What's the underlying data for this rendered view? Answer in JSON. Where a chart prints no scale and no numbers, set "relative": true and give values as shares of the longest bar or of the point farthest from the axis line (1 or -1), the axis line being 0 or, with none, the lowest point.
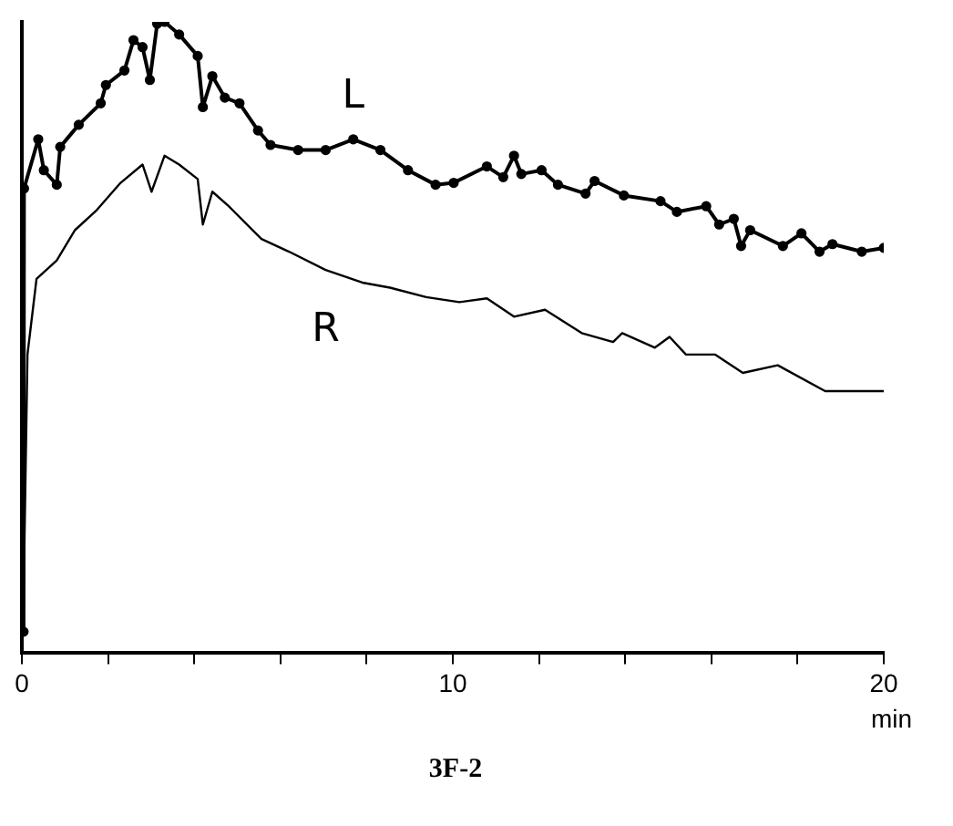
{
  "chart_data": {
    "type": "line",
    "relative": true,
    "xlabel": "min",
    "xlim": [
      0,
      20
    ],
    "xticks": [
      0,
      {
        "value": 2,
        "label": null
      },
      {
        "value": 4,
        "label": null
      },
      {
        "value": 6,
        "label": null
      },
      {
        "value": 8,
        "label": null
      },
      10,
      {
        "value": 12,
        "label": null
      },
      {
        "value": 14,
        "label": null
      },
      {
        "value": 16,
        "label": null
      },
      {
        "value": 18,
        "label": null
      },
      20
    ],
    "grid": false,
    "legend": false,
    "annotations": [
      "3F-2"
    ],
    "series": [
      {
        "name": "L",
        "color": "#000000",
        "marker": "circle",
        "x": [
          0.04,
          0.05,
          0.38,
          0.51,
          0.81,
          0.89,
          1.32,
          1.83,
          1.95,
          2.38,
          2.59,
          2.8,
          2.97,
          3.14,
          3.31,
          3.65,
          4.08,
          4.2,
          4.42,
          4.71,
          5.05,
          5.48,
          5.77,
          6.41,
          7.05,
          7.69,
          8.32,
          8.96,
          9.6,
          10.02,
          10.79,
          11.17,
          11.42,
          11.59,
          12.06,
          12.44,
          13.08,
          13.29,
          13.97,
          14.82,
          15.2,
          15.88,
          16.18,
          16.52,
          16.69,
          16.9,
          17.66,
          18.09,
          18.51,
          18.81,
          19.49,
          20
        ],
        "values": [
          0.034,
          0.736,
          0.814,
          0.765,
          0.742,
          0.802,
          0.837,
          0.871,
          0.9,
          0.923,
          0.971,
          0.96,
          0.908,
          0.997,
          1,
          0.98,
          0.946,
          0.865,
          0.914,
          0.88,
          0.871,
          0.828,
          0.805,
          0.797,
          0.797,
          0.814,
          0.797,
          0.765,
          0.742,
          0.745,
          0.771,
          0.754,
          0.788,
          0.759,
          0.765,
          0.742,
          0.728,
          0.748,
          0.725,
          0.716,
          0.699,
          0.708,
          0.679,
          0.688,
          0.645,
          0.67,
          0.645,
          0.665,
          0.636,
          0.648,
          0.636,
          0.642
        ]
      },
      {
        "name": "R",
        "color": "#000000",
        "marker": "none",
        "x": [
          0.04,
          0.13,
          0.34,
          0.81,
          1.23,
          1.74,
          2.29,
          2.8,
          3.01,
          3.31,
          3.65,
          4.08,
          4.2,
          4.42,
          4.8,
          5.56,
          6.2,
          7.05,
          7.9,
          8.54,
          9.38,
          10.15,
          10.79,
          11.42,
          12.14,
          12.99,
          13.72,
          13.93,
          14.69,
          15.03,
          15.41,
          16.09,
          16.73,
          17.54,
          18.64,
          19.49,
          20
        ],
        "values": [
          0.09,
          0.473,
          0.593,
          0.622,
          0.67,
          0.702,
          0.745,
          0.774,
          0.731,
          0.788,
          0.774,
          0.751,
          0.679,
          0.731,
          0.708,
          0.656,
          0.636,
          0.607,
          0.587,
          0.579,
          0.564,
          0.556,
          0.562,
          0.533,
          0.544,
          0.507,
          0.493,
          0.507,
          0.484,
          0.501,
          0.473,
          0.473,
          0.444,
          0.456,
          0.415,
          0.415,
          0.415
        ]
      }
    ]
  }
}
